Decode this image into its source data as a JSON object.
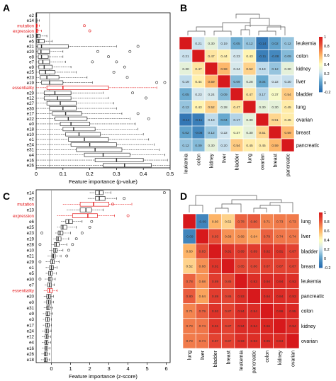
{
  "figure": {
    "panel_labels": [
      "A",
      "B",
      "C",
      "D"
    ]
  },
  "colors": {
    "highlight_red": "#e41a1c",
    "box_stroke": "#333333",
    "heat_low": "#2166ac",
    "heat_mid": "#ffffbf",
    "heat_high": "#d7191c",
    "heat_mid_red": "#fdae61",
    "heat_mid_blue": "#abd9e9"
  },
  "chart_data": [
    {
      "panel": "A",
      "type": "boxplot",
      "orientation": "horizontal",
      "xlabel": "Feature importance (p-value)",
      "xlim": [
        0,
        0.5
      ],
      "xticks": [
        0,
        0.1,
        0.2,
        0.3,
        0.4,
        0.5
      ],
      "reference_line": 0.05,
      "highlighted": [
        "mutation",
        "expression",
        "essentiality"
      ],
      "categories": [
        "e2",
        "e14",
        "mutation",
        "expression",
        "e13",
        "e5",
        "e21",
        "e20",
        "e8",
        "e7",
        "e9",
        "e25",
        "e23",
        "e19",
        "essentiality",
        "e29",
        "e12",
        "e27",
        "e30",
        "e17",
        "e22",
        "e0",
        "e18",
        "e10",
        "e1",
        "e24",
        "e31",
        "e4",
        "e16",
        "e26"
      ],
      "stats": [
        {
          "min": 0.0,
          "q1": 0.0,
          "median": 0.0,
          "q3": 0.0,
          "max": 0.0
        },
        {
          "min": 0.0,
          "q1": 0.0,
          "median": 0.0,
          "q3": 0.003,
          "max": 0.012
        },
        {
          "min": 0.0,
          "q1": 0.0,
          "median": 0.001,
          "q3": 0.004,
          "max": 0.012
        },
        {
          "min": 0.0,
          "q1": 0.0,
          "median": 0.002,
          "q3": 0.006,
          "max": 0.02
        },
        {
          "min": 0.0,
          "q1": 0.002,
          "median": 0.006,
          "q3": 0.015,
          "max": 0.04
        },
        {
          "min": 0.0,
          "q1": 0.003,
          "median": 0.01,
          "q3": 0.03,
          "max": 0.06
        },
        {
          "min": 0.0,
          "q1": 0.005,
          "median": 0.02,
          "q3": 0.12,
          "max": 0.3
        },
        {
          "min": 0.0,
          "q1": 0.006,
          "median": 0.018,
          "q3": 0.05,
          "max": 0.1
        },
        {
          "min": 0.0,
          "q1": 0.008,
          "median": 0.02,
          "q3": 0.045,
          "max": 0.1
        },
        {
          "min": 0.0,
          "q1": 0.01,
          "median": 0.025,
          "q3": 0.05,
          "max": 0.11
        },
        {
          "min": 0.0,
          "q1": 0.01,
          "median": 0.03,
          "q3": 0.06,
          "max": 0.13
        },
        {
          "min": 0.0,
          "q1": 0.012,
          "median": 0.035,
          "q3": 0.07,
          "max": 0.15
        },
        {
          "min": 0.0,
          "q1": 0.015,
          "median": 0.04,
          "q3": 0.085,
          "max": 0.19
        },
        {
          "min": 0.0,
          "q1": 0.02,
          "median": 0.05,
          "q3": 0.1,
          "max": 0.21
        },
        {
          "min": 0.0,
          "q1": 0.04,
          "median": 0.1,
          "q3": 0.27,
          "max": 0.45
        },
        {
          "min": 0.0,
          "q1": 0.03,
          "median": 0.07,
          "q3": 0.13,
          "max": 0.25
        },
        {
          "min": 0.0,
          "q1": 0.03,
          "median": 0.08,
          "q3": 0.13,
          "max": 0.27
        },
        {
          "min": 0.0,
          "q1": 0.04,
          "median": 0.09,
          "q3": 0.15,
          "max": 0.29
        },
        {
          "min": 0.0,
          "q1": 0.05,
          "median": 0.1,
          "q3": 0.15,
          "max": 0.3
        },
        {
          "min": 0.0,
          "q1": 0.06,
          "median": 0.11,
          "q3": 0.17,
          "max": 0.32
        },
        {
          "min": 0.0,
          "q1": 0.07,
          "median": 0.12,
          "q3": 0.19,
          "max": 0.35
        },
        {
          "min": 0.0,
          "q1": 0.09,
          "median": 0.13,
          "q3": 0.2,
          "max": 0.37
        },
        {
          "min": 0.0,
          "q1": 0.1,
          "median": 0.14,
          "q3": 0.22,
          "max": 0.38
        },
        {
          "min": 0.0,
          "q1": 0.11,
          "median": 0.16,
          "q3": 0.24,
          "max": 0.4
        },
        {
          "min": 0.0,
          "q1": 0.12,
          "median": 0.18,
          "q3": 0.27,
          "max": 0.42
        },
        {
          "min": 0.0,
          "q1": 0.13,
          "median": 0.2,
          "q3": 0.3,
          "max": 0.44
        },
        {
          "min": 0.0,
          "q1": 0.15,
          "median": 0.22,
          "q3": 0.32,
          "max": 0.46
        },
        {
          "min": 0.0,
          "q1": 0.18,
          "median": 0.25,
          "q3": 0.35,
          "max": 0.48
        },
        {
          "min": 0.0,
          "q1": 0.22,
          "median": 0.3,
          "q3": 0.4,
          "max": 0.49
        },
        {
          "min": 0.0,
          "q1": 0.25,
          "median": 0.33,
          "q3": 0.43,
          "max": 0.5
        }
      ],
      "outliers": [
        [],
        [],
        [
          0.18
        ],
        [
          0.2
        ],
        [],
        [],
        [
          0.38
        ],
        [
          0.23,
          0.35
        ],
        [
          0.27
        ],
        [
          0.21,
          0.3
        ],
        [
          0.33
        ],
        [
          0.29
        ],
        [
          0.34
        ],
        [
          0.45,
          0.48
        ],
        [],
        [
          0.36
        ],
        [
          0.41
        ],
        [],
        [],
        [
          0.38
        ],
        [
          0.42
        ],
        [],
        [],
        [],
        [],
        [],
        [],
        [],
        [],
        []
      ]
    },
    {
      "panel": "B",
      "type": "heatmap",
      "row_labels": [
        "leukemia",
        "colon",
        "kidney",
        "liver",
        "bladder",
        "lung",
        "ovarian",
        "breast",
        "pancreatic"
      ],
      "col_labels": [
        "leukemia",
        "colon",
        "kidney",
        "liver",
        "bladder",
        "lung",
        "ovarian",
        "breast",
        "pancreatic"
      ],
      "values": [
        [
          1,
          0.21,
          0.3,
          0.19,
          0.05,
          0.12,
          -0.14,
          0.02,
          0.12
        ],
        [
          0.21,
          1,
          0.47,
          0.44,
          0.23,
          0.43,
          -0.11,
          -0.08,
          0.09
        ],
        [
          0.3,
          0.47,
          1,
          0.59,
          0.24,
          0.52,
          0.19,
          0.12,
          0.3
        ],
        [
          0.19,
          0.44,
          0.59,
          1,
          0.09,
          0.28,
          0.04,
          0.22,
          0.2
        ],
        [
          0.05,
          0.23,
          0.24,
          0.09,
          1,
          0.47,
          0.17,
          0.37,
          0.54
        ],
        [
          0.12,
          0.43,
          0.52,
          0.28,
          0.47,
          1,
          0.3,
          0.3,
          0.45
        ],
        [
          -0.14,
          -0.11,
          0.19,
          0.04,
          0.17,
          0.3,
          1,
          0.51,
          0.45
        ],
        [
          0.02,
          -0.08,
          0.12,
          0.22,
          0.37,
          0.3,
          0.51,
          1,
          0.59
        ],
        [
          0.12,
          0.09,
          0.3,
          0.2,
          0.54,
          0.45,
          0.45,
          0.59,
          1
        ]
      ],
      "colorbar_ticks": [
        1,
        0.8,
        0.6,
        0.4,
        0.2,
        0,
        -0.2
      ],
      "color_range": [
        -0.2,
        1
      ]
    },
    {
      "panel": "C",
      "type": "boxplot",
      "orientation": "horizontal",
      "xlabel": "Feature importance (z-score)",
      "xlim": [
        -0.8,
        6.2
      ],
      "xticks": [
        0,
        1,
        2,
        3,
        4,
        5,
        6
      ],
      "reference_line": 0,
      "highlighted": [
        "mutation",
        "expression",
        "essentiality"
      ],
      "categories": [
        "e14",
        "e2",
        "mutation",
        "e13",
        "expression",
        "e6",
        "e25",
        "e23",
        "e19",
        "e28",
        "e10",
        "e21",
        "e29",
        "e1",
        "e5",
        "e30",
        "e7",
        "essentiality",
        "e20",
        "e0",
        "e31",
        "e9",
        "e3",
        "e17",
        "e24",
        "e12",
        "e4",
        "e16",
        "e26",
        "e18"
      ],
      "stats": [
        {
          "min": 2.0,
          "q1": 2.3,
          "median": 2.5,
          "q3": 2.7,
          "max": 3.1
        },
        {
          "min": 1.9,
          "q1": 2.3,
          "median": 2.5,
          "q3": 2.8,
          "max": 3.4
        },
        {
          "min": 0.6,
          "q1": 1.5,
          "median": 2.2,
          "q3": 3.0,
          "max": 4.2
        },
        {
          "min": 0.8,
          "q1": 1.5,
          "median": 1.8,
          "q3": 2.1,
          "max": 2.7
        },
        {
          "min": 0.3,
          "q1": 1.1,
          "median": 1.9,
          "q3": 2.4,
          "max": 3.3
        },
        {
          "min": 0.5,
          "q1": 0.75,
          "median": 0.9,
          "q3": 1.1,
          "max": 1.6
        },
        {
          "min": 0.3,
          "q1": 0.5,
          "median": 0.6,
          "q3": 0.8,
          "max": 1.3
        },
        {
          "min": 0.2,
          "q1": 0.35,
          "median": 0.45,
          "q3": 0.6,
          "max": 1.0
        },
        {
          "min": 0.1,
          "q1": 0.25,
          "median": 0.35,
          "q3": 0.5,
          "max": 0.9
        },
        {
          "min": 0.0,
          "q1": 0.15,
          "median": 0.25,
          "q3": 0.4,
          "max": 0.8
        },
        {
          "min": -0.1,
          "q1": 0.1,
          "median": 0.2,
          "q3": 0.3,
          "max": 0.6
        },
        {
          "min": -0.2,
          "q1": 0.05,
          "median": 0.1,
          "q3": 0.2,
          "max": 0.5
        },
        {
          "min": -0.3,
          "q1": -0.05,
          "median": 0.05,
          "q3": 0.15,
          "max": 0.4
        },
        {
          "min": -0.3,
          "q1": -0.1,
          "median": 0.0,
          "q3": 0.1,
          "max": 0.3
        },
        {
          "min": -0.3,
          "q1": -0.15,
          "median": -0.05,
          "q3": 0.05,
          "max": 0.25
        },
        {
          "min": -0.35,
          "q1": -0.15,
          "median": -0.08,
          "q3": 0.02,
          "max": 0.2
        },
        {
          "min": -0.35,
          "q1": -0.2,
          "median": -0.1,
          "q3": 0.0,
          "max": 0.15
        },
        {
          "min": -0.4,
          "q1": -0.2,
          "median": -0.1,
          "q3": 0.05,
          "max": 0.3
        },
        {
          "min": -0.4,
          "q1": -0.25,
          "median": -0.15,
          "q3": -0.05,
          "max": 0.1
        },
        {
          "min": -0.4,
          "q1": -0.25,
          "median": -0.15,
          "q3": -0.05,
          "max": 0.1
        },
        {
          "min": -0.4,
          "q1": -0.25,
          "median": -0.18,
          "q3": -0.08,
          "max": 0.05
        },
        {
          "min": -0.45,
          "q1": -0.28,
          "median": -0.2,
          "q3": -0.1,
          "max": 0.05
        },
        {
          "min": -0.45,
          "q1": -0.3,
          "median": -0.2,
          "q3": -0.12,
          "max": 0.0
        },
        {
          "min": -0.45,
          "q1": -0.3,
          "median": -0.22,
          "q3": -0.12,
          "max": 0.0
        },
        {
          "min": -0.5,
          "q1": -0.32,
          "median": -0.25,
          "q3": -0.15,
          "max": -0.02
        },
        {
          "min": -0.5,
          "q1": -0.33,
          "median": -0.25,
          "q3": -0.17,
          "max": -0.05
        },
        {
          "min": -0.5,
          "q1": -0.35,
          "median": -0.27,
          "q3": -0.18,
          "max": -0.05
        },
        {
          "min": -0.5,
          "q1": -0.35,
          "median": -0.28,
          "q3": -0.2,
          "max": -0.07
        },
        {
          "min": -0.52,
          "q1": -0.37,
          "median": -0.3,
          "q3": -0.22,
          "max": -0.1
        },
        {
          "min": -0.55,
          "q1": -0.38,
          "median": -0.3,
          "q3": -0.22,
          "max": -0.1
        }
      ],
      "outliers": [
        [
          5.9
        ],
        [
          3.8
        ],
        [
          3.2
        ],
        [],
        [
          4.0
        ],
        [
          2.1
        ],
        [
          2.0
        ],
        [
          1.6,
          -0.5
        ],
        [
          1.3
        ],
        [
          1.1,
          -0.6
        ],
        [
          0.9
        ],
        [
          0.8
        ],
        [
          -0.6
        ],
        [],
        [],
        [
          -0.6
        ],
        [],
        [],
        [],
        [],
        [],
        [],
        [],
        [],
        [],
        [],
        [],
        [],
        [],
        []
      ]
    },
    {
      "panel": "D",
      "type": "heatmap",
      "row_labels": [
        "lung",
        "liver",
        "bladder",
        "breast",
        "leukemia",
        "pancreatic",
        "colon",
        "kidney",
        "ovarian"
      ],
      "col_labels": [
        "lung",
        "liver",
        "bladder",
        "breast",
        "leukemia",
        "pancreatic",
        "colon",
        "kidney",
        "ovarian"
      ],
      "values": [
        [
          1,
          -0.09,
          0.6,
          0.52,
          0.78,
          0.8,
          0.71,
          0.73,
          0.73
        ],
        [
          -0.09,
          1,
          0.83,
          0.68,
          0.68,
          0.64,
          0.79,
          0.74,
          0.74
        ],
        [
          0.6,
          0.83,
          1,
          0.91,
          0.89,
          0.89,
          0.92,
          0.91,
          0.87
        ],
        [
          0.52,
          0.68,
          0.91,
          1,
          0.85,
          0.86,
          0.87,
          0.87,
          0.87
        ],
        [
          0.78,
          0.68,
          0.89,
          0.85,
          1,
          0.93,
          0.94,
          0.94,
          0.93
        ],
        [
          0.8,
          0.64,
          0.89,
          0.86,
          0.93,
          1,
          0.94,
          0.94,
          0.93
        ],
        [
          0.71,
          0.79,
          0.92,
          0.87,
          0.94,
          0.94,
          1,
          0.96,
          0.95
        ],
        [
          0.73,
          0.74,
          0.91,
          0.87,
          0.94,
          0.94,
          0.96,
          1,
          0.94
        ],
        [
          0.73,
          0.74,
          0.87,
          0.87,
          0.93,
          0.93,
          0.95,
          0.94,
          1
        ]
      ],
      "colorbar_ticks": [
        1,
        0.8,
        0.6,
        0.4,
        0.2,
        0,
        -0.2
      ],
      "color_range": [
        -0.2,
        1
      ]
    }
  ]
}
